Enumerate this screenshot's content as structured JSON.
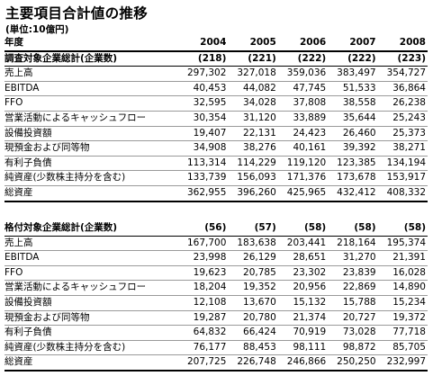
{
  "title": "主要項目合計値の推移",
  "unit": "(単位:10億円)",
  "header": {
    "label": "年度",
    "years": [
      "2004",
      "2005",
      "2006",
      "2007",
      "2008"
    ]
  },
  "sections": [
    {
      "name": "調査対象企業総計(企業数)",
      "counts": [
        "(218)",
        "(221)",
        "(222)",
        "(222)",
        "(223)"
      ],
      "rows": [
        {
          "label": "売上高",
          "values": [
            "297,302",
            "327,018",
            "359,036",
            "383,497",
            "354,727"
          ]
        },
        {
          "label": "EBITDA",
          "values": [
            "40,453",
            "44,082",
            "47,745",
            "51,533",
            "36,864"
          ]
        },
        {
          "label": "FFO",
          "values": [
            "32,595",
            "34,028",
            "37,808",
            "38,558",
            "26,238"
          ]
        },
        {
          "label": "営業活動によるキャッシュフロー",
          "values": [
            "30,354",
            "31,120",
            "33,889",
            "35,644",
            "25,243"
          ]
        },
        {
          "label": "設備投資額",
          "values": [
            "19,407",
            "22,131",
            "24,423",
            "26,460",
            "25,373"
          ]
        },
        {
          "label": "現預金および同等物",
          "values": [
            "34,908",
            "38,276",
            "40,161",
            "39,392",
            "38,271"
          ]
        },
        {
          "label": "有利子負債",
          "values": [
            "113,314",
            "114,229",
            "119,120",
            "123,385",
            "134,194"
          ]
        },
        {
          "label": "純資産(少数株主持分を含む)",
          "values": [
            "133,739",
            "156,093",
            "171,376",
            "173,678",
            "153,917"
          ]
        },
        {
          "label": "総資産",
          "values": [
            "362,955",
            "396,260",
            "425,965",
            "432,412",
            "408,332"
          ]
        }
      ]
    },
    {
      "name": "格付対象企業総計(企業数)",
      "counts": [
        "(56)",
        "(57)",
        "(58)",
        "(58)",
        "(58)"
      ],
      "rows": [
        {
          "label": "売上高",
          "values": [
            "167,700",
            "183,638",
            "203,441",
            "218,164",
            "195,374"
          ]
        },
        {
          "label": "EBITDA",
          "values": [
            "23,998",
            "26,129",
            "28,651",
            "31,270",
            "21,391"
          ]
        },
        {
          "label": "FFO",
          "values": [
            "19,623",
            "20,785",
            "23,302",
            "23,839",
            "16,028"
          ]
        },
        {
          "label": "営業活動によるキャッシュフロー",
          "values": [
            "18,204",
            "19,352",
            "20,956",
            "22,869",
            "14,890"
          ]
        },
        {
          "label": "設備投資額",
          "values": [
            "12,108",
            "13,670",
            "15,132",
            "15,788",
            "15,234"
          ]
        },
        {
          "label": "現預金および同等物",
          "values": [
            "19,287",
            "20,780",
            "21,374",
            "20,727",
            "19,372"
          ]
        },
        {
          "label": "有利子負債",
          "values": [
            "64,832",
            "66,424",
            "70,919",
            "73,028",
            "77,718"
          ]
        },
        {
          "label": "純資産(少数株主持分を含む)",
          "values": [
            "76,177",
            "88,453",
            "98,111",
            "98,872",
            "85,705"
          ]
        },
        {
          "label": "総資産",
          "values": [
            "207,725",
            "226,748",
            "246,866",
            "250,250",
            "232,997"
          ]
        }
      ]
    }
  ]
}
